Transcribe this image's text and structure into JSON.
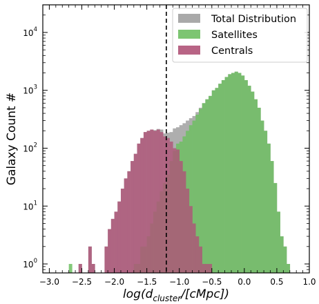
{
  "chart_data": {
    "type": "bar",
    "subtype": "histogram",
    "y_scale": "log",
    "xlabel_main": "log(d",
    "xlabel_sub": "cluster",
    "xlabel_tail": "/[cMpc])",
    "ylabel": "Galaxy Count #",
    "xlim": [
      -3.1,
      1.0
    ],
    "ylim": [
      0.7,
      30000
    ],
    "grid": false,
    "legend_position": "top-right",
    "x_ticks": [
      -3.0,
      -2.5,
      -2.0,
      -1.5,
      -1.0,
      -0.5,
      0.0,
      0.5,
      1.0
    ],
    "x_tick_labels": [
      "−3.0",
      "−2.5",
      "−2.0",
      "−1.5",
      "−1.0",
      "−0.5",
      "0.0",
      "0.5",
      "1.0"
    ],
    "y_ticks": [
      1,
      10,
      100,
      1000,
      10000
    ],
    "y_tick_exponents": [
      "0",
      "1",
      "2",
      "3",
      "4"
    ],
    "vline_x": -1.2,
    "bin_start": -2.9,
    "bin_width": 0.05,
    "series": [
      {
        "name": "Total Distribution",
        "color": "#a0a0a0",
        "values": [
          0,
          0,
          0,
          0,
          0,
          0,
          0,
          1,
          0,
          0,
          2,
          1,
          0,
          0,
          0,
          2,
          4,
          6,
          8,
          12,
          20,
          30,
          40,
          60,
          80,
          120,
          150,
          190,
          200,
          210,
          205,
          215,
          210,
          180,
          185,
          190,
          220,
          230,
          250,
          270,
          300,
          330,
          360,
          420,
          500,
          600,
          700,
          800,
          1000,
          1100,
          1300,
          1500,
          1700,
          1900,
          2000,
          2100,
          2000,
          1800,
          1500,
          1200,
          950,
          700,
          500,
          300,
          200,
          120,
          60,
          25,
          8,
          3,
          2,
          1,
          0
        ]
      },
      {
        "name": "Satellites",
        "color": "#6fbf63",
        "values": [
          0,
          0,
          0,
          0,
          1,
          0,
          0,
          0,
          0,
          0,
          0,
          0,
          0,
          0,
          0,
          0,
          0,
          0,
          0,
          0,
          0,
          0,
          0,
          0,
          1,
          1,
          2,
          2,
          3,
          5,
          8,
          12,
          18,
          25,
          35,
          60,
          90,
          120,
          130,
          160,
          200,
          250,
          300,
          380,
          480,
          600,
          700,
          800,
          1000,
          1100,
          1300,
          1500,
          1700,
          1900,
          2000,
          2100,
          2000,
          1800,
          1500,
          1200,
          950,
          700,
          500,
          300,
          200,
          120,
          60,
          25,
          8,
          3,
          2,
          1,
          0
        ]
      },
      {
        "name": "Centrals",
        "color": "#b05378",
        "values": [
          0,
          0,
          0,
          0,
          0,
          0,
          0,
          1,
          0,
          0,
          2,
          1,
          0,
          0,
          0,
          2,
          4,
          6,
          8,
          12,
          20,
          30,
          40,
          60,
          80,
          120,
          150,
          190,
          200,
          210,
          200,
          210,
          190,
          160,
          150,
          130,
          100,
          95,
          60,
          40,
          20,
          10,
          5,
          3,
          2,
          1,
          1,
          1,
          0,
          0,
          0,
          0,
          0,
          0,
          0,
          0,
          0,
          0,
          0,
          0,
          0,
          0,
          0,
          0,
          0,
          0,
          0,
          0,
          0,
          0,
          0,
          0,
          0
        ]
      }
    ]
  }
}
